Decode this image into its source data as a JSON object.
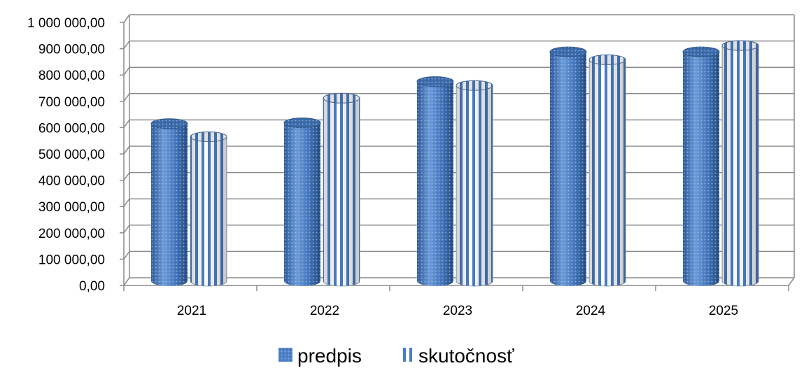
{
  "chart_data": {
    "type": "bar",
    "style": "3d-cylinder",
    "categories": [
      "2021",
      "2022",
      "2023",
      "2024",
      "2025"
    ],
    "series": [
      {
        "name": "predpis",
        "values": [
          615000,
          618000,
          775000,
          888000,
          888000
        ],
        "color": "#4a7ec4",
        "pattern": "dots"
      },
      {
        "name": "skutočnosť",
        "values": [
          565000,
          712000,
          760000,
          858000,
          912000
        ],
        "color": "#4a7ec4",
        "pattern": "stripes"
      }
    ],
    "ylim": [
      0,
      1000000
    ],
    "yticks": [
      "0,00",
      "100 000,00",
      "200 000,00",
      "300 000,00",
      "400 000,00",
      "500 000,00",
      "600 000,00",
      "700 000,00",
      "800 000,00",
      "900 000,00",
      "1 000 000,00"
    ],
    "grid": true,
    "legend_position": "bottom"
  }
}
